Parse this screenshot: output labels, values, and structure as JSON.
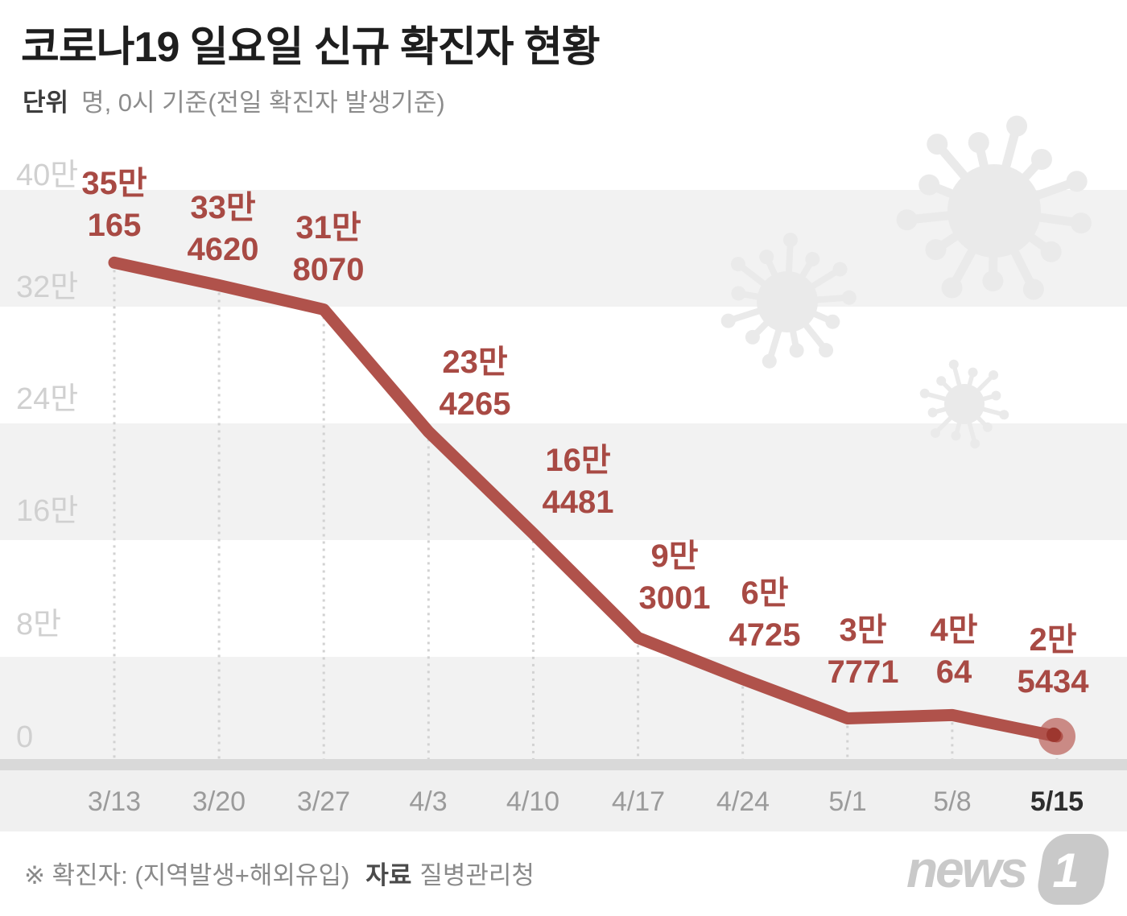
{
  "header": {
    "title": "코로나19 일요일 신규 확진자 현황",
    "unit_label": "단위",
    "unit_text": "명, 0시 기준(전일 확진자 발생기준)"
  },
  "y_axis": {
    "labels": [
      "40만",
      "32만",
      "24만",
      "16만",
      "8만",
      "0"
    ]
  },
  "chart_data": {
    "type": "line",
    "title": "코로나19 일요일 신규 확진자 현황",
    "unit": "명 (0시 기준, 전일 확진자 발생기준)",
    "categories": [
      "3/13",
      "3/20",
      "3/27",
      "4/3",
      "4/10",
      "4/17",
      "4/24",
      "5/1",
      "5/8",
      "5/15"
    ],
    "values": [
      350165,
      334620,
      318070,
      234265,
      164481,
      93001,
      64725,
      37771,
      40064,
      25434
    ],
    "point_labels": [
      [
        "35만",
        "165"
      ],
      [
        "33만",
        "4620"
      ],
      [
        "31만",
        "8070"
      ],
      [
        "23만",
        "4265"
      ],
      [
        "16만",
        "4481"
      ],
      [
        "9만",
        "3001"
      ],
      [
        "6만",
        "4725"
      ],
      [
        "3만",
        "7771"
      ],
      [
        "4만",
        "64"
      ],
      [
        "2만",
        "5434"
      ]
    ],
    "y_ticks": [
      "0",
      "8만",
      "16만",
      "24만",
      "32만",
      "40만"
    ],
    "ylim": [
      0,
      400000
    ],
    "grid": "horizontal-stripes, dashed vertical drop lines",
    "legend": "none",
    "highlight_category": "5/15",
    "line_color": "#b0524b",
    "label_color": "#a84a44",
    "end_dot_color": "#ca8a85",
    "end_dot_core_color": "#9d372f"
  },
  "colors": {
    "stripe": "#f2f2f2",
    "axis_strip": "#d9d9d9",
    "x_band": "#f0f0f0",
    "dash_line": "#d2d2d2",
    "virus": "#eaeaea",
    "y_label": "#d0d0d0",
    "x_label": "#9b9b9b",
    "x_label_highlight": "#2d2d2d"
  },
  "footer": {
    "note": "※ 확진자: (지역발생+해외유입)",
    "source_label": "자료",
    "source_value": "질병관리청"
  },
  "logo": {
    "news": "news",
    "one": "1"
  }
}
